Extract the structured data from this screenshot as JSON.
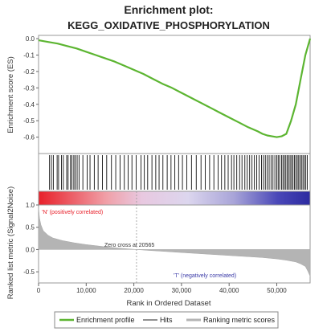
{
  "chart_data": {
    "type": "line",
    "title": "Enrichment plot:",
    "subtitle": "KEGG_OXIDATIVE_PHOSPHORYLATION",
    "xlabel": "Rank in Ordered Dataset",
    "xlim": [
      0,
      57000
    ],
    "x_ticks": [
      "0",
      "10,000",
      "20,000",
      "30,000",
      "40,000",
      "50,000"
    ],
    "x_tick_values": [
      0,
      10000,
      20000,
      30000,
      40000,
      50000
    ],
    "es_panel": {
      "ylabel": "Enrichment score (ES)",
      "ylim": [
        -0.7,
        0.02
      ],
      "y_ticks": [
        "0.0",
        "-0.1",
        "-0.2",
        "-0.3",
        "-0.4",
        "-0.5",
        "-0.6"
      ],
      "y_tick_values": [
        0.0,
        -0.1,
        -0.2,
        -0.3,
        -0.4,
        -0.5,
        -0.6
      ],
      "series": [
        {
          "name": "Enrichment profile",
          "color": "#5cb531",
          "x": [
            0,
            2000,
            4000,
            6000,
            8000,
            10000,
            12000,
            14000,
            16000,
            18000,
            20000,
            22000,
            24000,
            26000,
            28000,
            30000,
            32000,
            34000,
            36000,
            38000,
            40000,
            42000,
            44000,
            46000,
            47000,
            48000,
            49000,
            50000,
            51000,
            52000,
            53000,
            54000,
            55000,
            56000,
            57000
          ],
          "y": [
            -0.01,
            -0.02,
            -0.03,
            -0.045,
            -0.06,
            -0.08,
            -0.1,
            -0.12,
            -0.14,
            -0.165,
            -0.19,
            -0.215,
            -0.245,
            -0.275,
            -0.3,
            -0.33,
            -0.36,
            -0.39,
            -0.42,
            -0.45,
            -0.48,
            -0.51,
            -0.54,
            -0.565,
            -0.58,
            -0.59,
            -0.595,
            -0.6,
            -0.595,
            -0.58,
            -0.5,
            -0.4,
            -0.25,
            -0.1,
            0.0
          ]
        }
      ]
    },
    "hits": {
      "name": "Hits",
      "color": "#111111",
      "positions": [
        2300,
        2700,
        3100,
        3900,
        4200,
        4800,
        5200,
        5900,
        6200,
        6700,
        7000,
        7400,
        7700,
        8100,
        8500,
        9300,
        10200,
        10800,
        11700,
        12500,
        13400,
        14300,
        15300,
        16200,
        17100,
        18000,
        18800,
        19600,
        20500,
        21500,
        22200,
        22900,
        23800,
        24600,
        25300,
        26100,
        27000,
        27800,
        28600,
        29400,
        30200,
        31100,
        32100,
        33100,
        34100,
        35000,
        35900,
        36800,
        37700,
        38400,
        39100,
        39800,
        40500,
        41000,
        41600,
        42200,
        42700,
        43300,
        43800,
        44300,
        44800,
        45300,
        45800,
        46300,
        46800,
        47200,
        47600,
        48000,
        48400,
        48800,
        49200,
        49600,
        50000,
        50300,
        50600,
        51000,
        51300,
        51600,
        51900,
        52200,
        52500,
        52800,
        53100,
        53400,
        53700,
        54000,
        54300,
        54600,
        54900,
        55200,
        55500,
        55800,
        56100,
        56400
      ]
    },
    "metric_panel": {
      "ylabel": "Ranked list metric (Signal2Noise)",
      "ylim": [
        -0.75,
        1.0
      ],
      "y_ticks": [
        "1.0",
        "0.5",
        "0.0",
        "-0.5"
      ],
      "y_tick_values": [
        1.0,
        0.5,
        0.0,
        -0.5
      ],
      "series": [
        {
          "name": "Ranking metric scores",
          "color": "#b4b4b4",
          "x": [
            0,
            200,
            500,
            1000,
            2000,
            3000,
            5000,
            7500,
            10000,
            12500,
            15000,
            17500,
            20565,
            23000,
            26000,
            29000,
            32000,
            35000,
            38000,
            41000,
            44000,
            47000,
            50000,
            52000,
            54000,
            55000,
            56000,
            56500,
            57000
          ],
          "y": [
            0.95,
            0.7,
            0.55,
            0.42,
            0.32,
            0.26,
            0.2,
            0.15,
            0.11,
            0.08,
            0.05,
            0.025,
            0.0,
            -0.02,
            -0.04,
            -0.06,
            -0.08,
            -0.1,
            -0.12,
            -0.14,
            -0.16,
            -0.18,
            -0.21,
            -0.24,
            -0.28,
            -0.32,
            -0.38,
            -0.48,
            -0.6
          ]
        }
      ],
      "zero_cross": 20565,
      "zero_cross_label": "Zero cross at 20565",
      "pos_label": "'N' (positively correlated)",
      "neg_label": "'T' (negatively correlated)",
      "pos_color": "#e8202a",
      "neg_color": "#3b3ba8"
    },
    "legend": {
      "placement": "bottom",
      "items": [
        {
          "name": "Enrichment profile",
          "color": "#5cb531"
        },
        {
          "name": "Hits",
          "color": "#222222"
        },
        {
          "name": "Ranking metric scores",
          "color": "#b4b4b4"
        }
      ]
    },
    "grid": false
  }
}
